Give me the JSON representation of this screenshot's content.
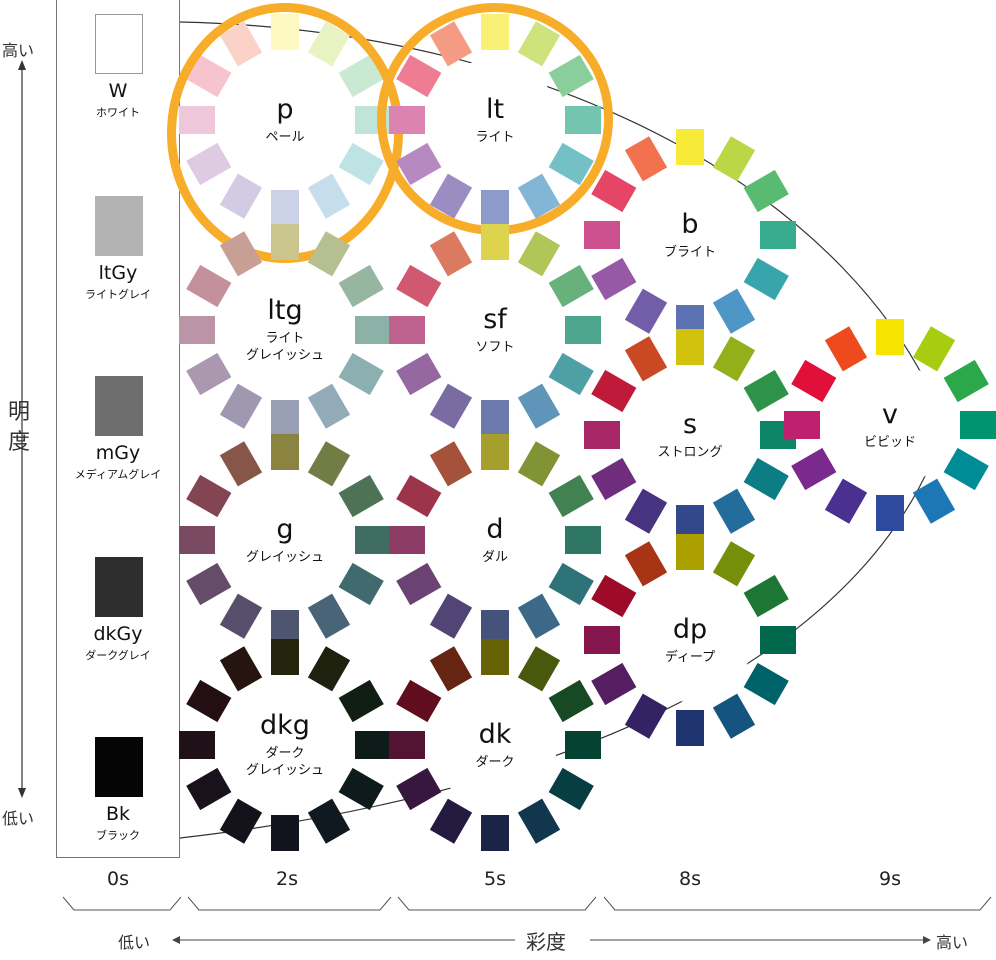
{
  "vertical_axis": {
    "label": "明度",
    "high": "高い",
    "low": "低い"
  },
  "horizontal_axis": {
    "label": "彩度",
    "low": "低い",
    "high": "高い"
  },
  "chroma_levels": [
    "0s",
    "2s",
    "5s",
    "8s",
    "9s"
  ],
  "achromatic": [
    {
      "code": "W",
      "name": "ホワイト",
      "color": "#ffffff"
    },
    {
      "code": "ltGy",
      "name": "ライトグレイ",
      "color": "#b3b3b3"
    },
    {
      "code": "mGy",
      "name": "メディアムグレイ",
      "color": "#6e6e6e"
    },
    {
      "code": "dkGy",
      "name": "ダークグレイ",
      "color": "#2e2e2e"
    },
    {
      "code": "Bk",
      "name": "ブラック",
      "color": "#050505"
    }
  ],
  "hues": [
    "#f5e400",
    "#a8cc10",
    "#2aa84a",
    "#00956e",
    "#008c96",
    "#1c78b4",
    "#2e4a9e",
    "#4a3090",
    "#7a2a8c",
    "#c02070",
    "#e0103a",
    "#ee4a1e",
    "#f58a00"
  ],
  "tones": [
    {
      "code": "p",
      "name": "ペール",
      "white": 0.75,
      "gray": 0,
      "black": 0,
      "highlighted": true
    },
    {
      "code": "lt",
      "name": "ライト",
      "white": 0.45,
      "gray": 0,
      "black": 0,
      "highlighted": true
    },
    {
      "code": "b",
      "name": "ブライト",
      "white": 0.22,
      "gray": 0,
      "black": 0,
      "highlighted": false
    },
    {
      "code": "ltg",
      "name": "ライト\nグレイッシュ",
      "white": 0.35,
      "gray": 0.4,
      "black": 0,
      "highlighted": false
    },
    {
      "code": "sf",
      "name": "ソフト",
      "white": 0.2,
      "gray": 0.22,
      "black": 0,
      "highlighted": false
    },
    {
      "code": "s",
      "name": "ストロング",
      "white": 0,
      "gray": 0.1,
      "black": 0.1,
      "highlighted": false
    },
    {
      "code": "v",
      "name": "ビビッド",
      "white": 0,
      "gray": 0,
      "black": 0,
      "highlighted": false
    },
    {
      "code": "g",
      "name": "グレイッシュ",
      "white": 0,
      "gray": 0.5,
      "black": 0.2,
      "highlighted": false
    },
    {
      "code": "d",
      "name": "ダル",
      "white": 0,
      "gray": 0.35,
      "black": 0.15,
      "highlighted": false
    },
    {
      "code": "dp",
      "name": "ディープ",
      "white": 0,
      "gray": 0,
      "black": 0.3,
      "highlighted": false
    },
    {
      "code": "dkg",
      "name": "ダーク\nグレイッシュ",
      "white": 0,
      "gray": 0.1,
      "black": 0.8,
      "highlighted": false
    },
    {
      "code": "dk",
      "name": "ダーク",
      "white": 0,
      "gray": 0.05,
      "black": 0.55,
      "highlighted": false
    }
  ],
  "highlight_color": "#f7ad2a"
}
